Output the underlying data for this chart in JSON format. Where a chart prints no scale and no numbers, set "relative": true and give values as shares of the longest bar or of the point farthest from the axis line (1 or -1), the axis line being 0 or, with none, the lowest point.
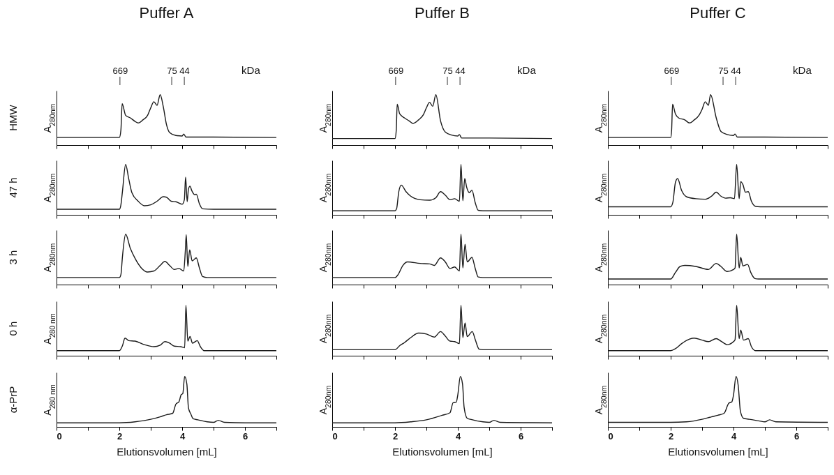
{
  "chart_data": [
    {
      "type": "line",
      "title": "Puffer A",
      "ylabel": "A$_{280nm}$",
      "relative": true,
      "xlim": [
        0,
        7
      ],
      "xticks": [
        0,
        {
          "value": 1,
          "label": null
        },
        2,
        {
          "value": 3,
          "label": null
        },
        4,
        {
          "value": 5,
          "label": null
        },
        6,
        {
          "value": 7,
          "label": null
        }
      ],
      "tick_labels": false,
      "x2lim": [
        9772,
        0.898
      ],
      "x2ticks": [
        669,
        75,
        44
      ],
      "x2label": "kDa",
      "log": "x2",
      "annotations": [
        "HMW"
      ],
      "x": [
        0,
        2.0,
        2.05,
        2.09,
        2.2,
        2.35,
        2.5,
        2.6,
        2.75,
        2.9,
        3.0,
        3.1,
        3.2,
        3.3,
        3.4,
        3.5,
        3.6,
        3.8,
        4.0,
        4.05,
        4.12,
        5.0,
        7.0
      ],
      "series": [
        {
          "color": "#1a1a1a",
          "values": [
            0.15,
            0.15,
            0.3,
            0.82,
            0.59,
            0.54,
            0.47,
            0.44,
            0.5,
            0.59,
            0.74,
            0.86,
            0.79,
            1.0,
            0.76,
            0.41,
            0.25,
            0.19,
            0.18,
            0.22,
            0.16,
            0.16,
            0.15
          ]
        }
      ]
    },
    {
      "type": "line",
      "title": "Puffer B",
      "ylabel": "A$_{280nm}$",
      "relative": true,
      "xlim": [
        0,
        7
      ],
      "xticks": [
        0,
        {
          "value": 1,
          "label": null
        },
        2,
        {
          "value": 3,
          "label": null
        },
        4,
        {
          "value": 5,
          "label": null
        },
        6,
        {
          "value": 7,
          "label": null
        }
      ],
      "tick_labels": false,
      "x2lim": [
        9772,
        0.898
      ],
      "x2ticks": [
        669,
        75,
        44
      ],
      "x2label": "kDa",
      "log": "x2",
      "x": [
        0,
        2.0,
        2.04,
        2.07,
        2.15,
        2.3,
        2.45,
        2.57,
        2.75,
        2.9,
        3.0,
        3.1,
        3.2,
        3.3,
        3.45,
        3.6,
        3.8,
        4.0,
        4.05,
        4.12,
        5.0,
        7.0
      ],
      "series": [
        {
          "color": "#1a1a1a",
          "values": [
            0.13,
            0.13,
            0.3,
            0.81,
            0.62,
            0.54,
            0.48,
            0.43,
            0.5,
            0.6,
            0.74,
            0.85,
            0.77,
            1.0,
            0.48,
            0.26,
            0.2,
            0.18,
            0.21,
            0.14,
            0.14,
            0.13
          ]
        }
      ]
    },
    {
      "type": "line",
      "title": "Puffer C",
      "ylabel": "A$_{280nm}$",
      "relative": true,
      "xlim": [
        0,
        7
      ],
      "xticks": [
        0,
        {
          "value": 1,
          "label": null
        },
        2,
        {
          "value": 3,
          "label": null
        },
        4,
        {
          "value": 5,
          "label": null
        },
        6,
        {
          "value": 7,
          "label": null
        }
      ],
      "tick_labels": false,
      "x2lim": [
        9772,
        0.898
      ],
      "x2ticks": [
        669,
        75,
        44
      ],
      "x2label": "kDa",
      "log": "x2",
      "x": [
        0,
        2.0,
        2.03,
        2.06,
        2.15,
        2.25,
        2.45,
        2.6,
        2.75,
        2.9,
        3.0,
        3.1,
        3.2,
        3.27,
        3.45,
        3.6,
        3.8,
        4.0,
        4.05,
        4.12,
        5.0,
        7.0
      ],
      "series": [
        {
          "color": "#1a1a1a",
          "values": [
            0.15,
            0.15,
            0.3,
            0.81,
            0.62,
            0.54,
            0.5,
            0.44,
            0.5,
            0.59,
            0.71,
            0.86,
            0.79,
            1.0,
            0.54,
            0.27,
            0.21,
            0.19,
            0.22,
            0.16,
            0.16,
            0.15
          ]
        }
      ]
    },
    {
      "type": "line",
      "ylabel": "A$_{280nm}$",
      "relative": true,
      "xlim": [
        0,
        7
      ],
      "xticks": [
        0,
        {
          "value": 1,
          "label": null
        },
        2,
        {
          "value": 3,
          "label": null
        },
        4,
        {
          "value": 5,
          "label": null
        },
        6,
        {
          "value": 7,
          "label": null
        }
      ],
      "tick_labels": false,
      "annotations": [
        "47 h"
      ],
      "x": [
        0,
        2.0,
        2.05,
        2.1,
        2.2,
        2.3,
        2.4,
        2.6,
        2.8,
        3.0,
        3.2,
        3.4,
        3.5,
        3.65,
        3.8,
        4.0,
        4.07,
        4.11,
        4.16,
        4.2,
        4.25,
        4.3,
        4.4,
        4.45,
        4.55,
        4.65,
        5.0,
        7.0
      ],
      "series": [
        {
          "color": "#1a1a1a",
          "values": [
            0.11,
            0.11,
            0.2,
            0.47,
            1.0,
            0.71,
            0.44,
            0.27,
            0.18,
            0.2,
            0.27,
            0.36,
            0.35,
            0.27,
            0.26,
            0.21,
            0.3,
            0.75,
            0.26,
            0.51,
            0.57,
            0.49,
            0.4,
            0.41,
            0.22,
            0.12,
            0.11,
            0.11
          ]
        }
      ]
    },
    {
      "type": "line",
      "ylabel": "A$_{280nm}$",
      "relative": true,
      "xlim": [
        0,
        7
      ],
      "xticks": [
        0,
        {
          "value": 1,
          "label": null
        },
        2,
        {
          "value": 3,
          "label": null
        },
        4,
        {
          "value": 5,
          "label": null
        },
        6,
        {
          "value": 7,
          "label": null
        }
      ],
      "tick_labels": false,
      "x": [
        0,
        2.0,
        2.05,
        2.12,
        2.2,
        2.35,
        2.5,
        2.8,
        3.1,
        3.3,
        3.45,
        3.6,
        3.75,
        3.9,
        4.05,
        4.1,
        4.16,
        4.22,
        4.28,
        4.37,
        4.45,
        4.55,
        4.65,
        4.8,
        7.0
      ],
      "series": [
        {
          "color": "#1a1a1a",
          "values": [
            0.08,
            0.08,
            0.12,
            0.46,
            0.59,
            0.46,
            0.37,
            0.3,
            0.29,
            0.34,
            0.46,
            0.39,
            0.3,
            0.32,
            0.27,
            1.0,
            0.28,
            0.72,
            0.55,
            0.44,
            0.49,
            0.25,
            0.09,
            0.08,
            0.08
          ]
        }
      ]
    },
    {
      "type": "line",
      "ylabel": "A$_{280nm}$",
      "relative": true,
      "xlim": [
        0,
        7
      ],
      "xticks": [
        0,
        {
          "value": 1,
          "label": null
        },
        2,
        {
          "value": 3,
          "label": null
        },
        4,
        {
          "value": 5,
          "label": null
        },
        6,
        {
          "value": 7,
          "label": null
        }
      ],
      "tick_labels": false,
      "x": [
        0,
        2.0,
        2.07,
        2.15,
        2.22,
        2.35,
        2.5,
        2.8,
        3.1,
        3.3,
        3.45,
        3.6,
        3.75,
        3.9,
        4.03,
        4.1,
        4.18,
        4.23,
        4.3,
        4.38,
        4.47,
        4.57,
        4.7,
        4.85,
        7.0
      ],
      "series": [
        {
          "color": "#1a1a1a",
          "values": [
            0.16,
            0.16,
            0.25,
            0.64,
            0.72,
            0.48,
            0.36,
            0.32,
            0.31,
            0.37,
            0.45,
            0.37,
            0.33,
            0.34,
            0.32,
            1.0,
            0.32,
            0.66,
            0.6,
            0.45,
            0.46,
            0.27,
            0.17,
            0.16,
            0.16
          ]
        }
      ]
    },
    {
      "type": "line",
      "ylabel": "A$_{280nm}$",
      "relative": true,
      "xlim": [
        0,
        7
      ],
      "xticks": [
        0,
        {
          "value": 1,
          "label": null
        },
        2,
        {
          "value": 3,
          "label": null
        },
        4,
        {
          "value": 5,
          "label": null
        },
        6,
        {
          "value": 7,
          "label": null
        }
      ],
      "tick_labels": false,
      "annotations": [
        "3 h"
      ],
      "x": [
        0,
        2.0,
        2.05,
        2.1,
        2.2,
        2.35,
        2.5,
        2.7,
        2.9,
        3.1,
        3.3,
        3.45,
        3.6,
        3.75,
        3.9,
        4.05,
        4.1,
        4.13,
        4.18,
        4.24,
        4.32,
        4.45,
        4.55,
        4.65,
        4.8,
        7.0
      ],
      "series": [
        {
          "color": "#1a1a1a",
          "values": [
            0.14,
            0.14,
            0.2,
            0.56,
            1.0,
            0.72,
            0.52,
            0.33,
            0.25,
            0.27,
            0.38,
            0.46,
            0.38,
            0.3,
            0.32,
            0.27,
            0.66,
            0.99,
            0.36,
            0.69,
            0.47,
            0.53,
            0.33,
            0.16,
            0.14,
            0.14
          ]
        }
      ]
    },
    {
      "type": "line",
      "ylabel": "A$_{280nm}$",
      "relative": true,
      "xlim": [
        0,
        7
      ],
      "xticks": [
        0,
        {
          "value": 1,
          "label": null
        },
        2,
        {
          "value": 3,
          "label": null
        },
        4,
        {
          "value": 5,
          "label": null
        },
        6,
        {
          "value": 7,
          "label": null
        }
      ],
      "tick_labels": false,
      "x": [
        0,
        2.0,
        2.1,
        2.25,
        2.4,
        2.8,
        3.1,
        3.25,
        3.45,
        3.6,
        3.75,
        3.9,
        4.05,
        4.1,
        4.16,
        4.23,
        4.3,
        4.45,
        4.55,
        4.65,
        4.8,
        7.0
      ],
      "series": [
        {
          "color": "#1a1a1a",
          "values": [
            0.14,
            0.14,
            0.2,
            0.38,
            0.45,
            0.42,
            0.41,
            0.38,
            0.53,
            0.45,
            0.32,
            0.35,
            0.27,
            1.0,
            0.33,
            0.8,
            0.45,
            0.54,
            0.33,
            0.15,
            0.14,
            0.14
          ]
        }
      ]
    },
    {
      "type": "line",
      "ylabel": "A$_{280nm}$",
      "relative": true,
      "xlim": [
        0,
        7
      ],
      "xticks": [
        0,
        {
          "value": 1,
          "label": null
        },
        2,
        {
          "value": 3,
          "label": null
        },
        4,
        {
          "value": 5,
          "label": null
        },
        6,
        {
          "value": 7,
          "label": null
        }
      ],
      "tick_labels": false,
      "x": [
        0,
        2.0,
        2.15,
        2.3,
        2.45,
        2.8,
        3.2,
        3.45,
        3.6,
        3.8,
        4.0,
        4.05,
        4.1,
        4.18,
        4.23,
        4.3,
        4.45,
        4.55,
        4.68,
        4.8,
        7.0
      ],
      "series": [
        {
          "color": "#1a1a1a",
          "values": [
            0.11,
            0.11,
            0.24,
            0.36,
            0.38,
            0.36,
            0.3,
            0.42,
            0.36,
            0.26,
            0.3,
            0.33,
            1.0,
            0.33,
            0.54,
            0.37,
            0.4,
            0.24,
            0.12,
            0.11,
            0.11
          ]
        }
      ]
    },
    {
      "type": "line",
      "ylabel": "A$_{280 nm}$",
      "relative": true,
      "xlim": [
        0,
        7
      ],
      "xticks": [
        0,
        {
          "value": 1,
          "label": null
        },
        2,
        {
          "value": 3,
          "label": null
        },
        4,
        {
          "value": 5,
          "label": null
        },
        6,
        {
          "value": 7,
          "label": null
        }
      ],
      "tick_labels": false,
      "annotations": [
        "0 h"
      ],
      "x": [
        0,
        2.0,
        2.1,
        2.18,
        2.3,
        2.5,
        2.8,
        3.1,
        3.3,
        3.45,
        3.6,
        3.75,
        3.95,
        4.08,
        4.12,
        4.18,
        4.25,
        4.33,
        4.48,
        4.58,
        4.7,
        7.0
      ],
      "series": [
        {
          "color": "#1a1a1a",
          "values": [
            0.1,
            0.1,
            0.2,
            0.35,
            0.3,
            0.29,
            0.22,
            0.18,
            0.21,
            0.28,
            0.25,
            0.19,
            0.18,
            0.16,
            1.0,
            0.29,
            0.38,
            0.25,
            0.3,
            0.18,
            0.1,
            0.1
          ]
        }
      ]
    },
    {
      "type": "line",
      "ylabel": "A$_{280nm}$",
      "relative": true,
      "xlim": [
        0,
        7
      ],
      "xticks": [
        0,
        {
          "value": 1,
          "label": null
        },
        2,
        {
          "value": 3,
          "label": null
        },
        4,
        {
          "value": 5,
          "label": null
        },
        6,
        {
          "value": 7,
          "label": null
        }
      ],
      "tick_labels": false,
      "x": [
        0,
        2.0,
        2.15,
        2.3,
        2.5,
        2.75,
        3.0,
        3.25,
        3.45,
        3.6,
        3.75,
        3.9,
        4.05,
        4.1,
        4.16,
        4.23,
        4.3,
        4.46,
        4.55,
        4.68,
        4.8,
        7.0
      ],
      "series": [
        {
          "color": "#1a1a1a",
          "values": [
            0.12,
            0.12,
            0.2,
            0.26,
            0.36,
            0.45,
            0.43,
            0.37,
            0.48,
            0.39,
            0.29,
            0.28,
            0.24,
            1.0,
            0.36,
            0.65,
            0.38,
            0.48,
            0.33,
            0.13,
            0.12,
            0.12
          ]
        }
      ]
    },
    {
      "type": "line",
      "ylabel": "A$_{280nm}$",
      "relative": true,
      "xlim": [
        0,
        7
      ],
      "xticks": [
        0,
        {
          "value": 1,
          "label": null
        },
        2,
        {
          "value": 3,
          "label": null
        },
        4,
        {
          "value": 5,
          "label": null
        },
        6,
        {
          "value": 7,
          "label": null
        }
      ],
      "tick_labels": false,
      "x": [
        0,
        2.0,
        2.15,
        2.35,
        2.6,
        2.75,
        3.0,
        3.2,
        3.45,
        3.6,
        3.8,
        4.0,
        4.05,
        4.1,
        4.18,
        4.23,
        4.32,
        4.47,
        4.57,
        4.7,
        7.0
      ],
      "series": [
        {
          "color": "#1a1a1a",
          "values": [
            0.1,
            0.1,
            0.14,
            0.24,
            0.33,
            0.35,
            0.31,
            0.28,
            0.34,
            0.29,
            0.22,
            0.28,
            0.32,
            1.0,
            0.34,
            0.51,
            0.31,
            0.34,
            0.18,
            0.1,
            0.1
          ]
        }
      ]
    },
    {
      "type": "line",
      "ylabel": "A$_{280 nm}$",
      "xlabel": "Elutionsvolumen [mL]",
      "relative": true,
      "xlim": [
        0,
        7
      ],
      "xticks": [
        0,
        {
          "value": 1,
          "label": null
        },
        2,
        {
          "value": 3,
          "label": null
        },
        4,
        {
          "value": 5,
          "label": null
        },
        6,
        {
          "value": 7,
          "label": null
        }
      ],
      "tick_labels": "x",
      "annotations": [
        "α-PrP"
      ],
      "x": [
        0,
        2.0,
        2.5,
        3.0,
        3.3,
        3.5,
        3.7,
        3.8,
        3.9,
        3.97,
        4.02,
        4.08,
        4.15,
        4.2,
        4.28,
        4.35,
        4.5,
        4.8,
        5.0,
        5.15,
        5.35,
        6.0,
        7.0
      ],
      "series": [
        {
          "color": "#1a1a1a",
          "values": [
            0.08,
            0.08,
            0.1,
            0.15,
            0.2,
            0.24,
            0.27,
            0.45,
            0.5,
            0.64,
            0.66,
            1.0,
            0.85,
            0.38,
            0.25,
            0.16,
            0.14,
            0.1,
            0.09,
            0.13,
            0.09,
            0.08,
            0.08
          ]
        }
      ]
    },
    {
      "type": "line",
      "ylabel": "A$_{280nm}$",
      "xlabel": "Elutionsvolumen [mL]",
      "relative": true,
      "xlim": [
        0,
        7
      ],
      "xticks": [
        0,
        {
          "value": 1,
          "label": null
        },
        2,
        {
          "value": 3,
          "label": null
        },
        4,
        {
          "value": 5,
          "label": null
        },
        6,
        {
          "value": 7,
          "label": null
        }
      ],
      "tick_labels": "x",
      "x": [
        0,
        2.0,
        2.5,
        3.0,
        3.5,
        3.75,
        3.85,
        3.95,
        4.0,
        4.08,
        4.15,
        4.2,
        4.3,
        4.4,
        4.8,
        5.0,
        5.15,
        5.35,
        7.0
      ],
      "series": [
        {
          "color": "#1a1a1a",
          "values": [
            0.08,
            0.08,
            0.1,
            0.14,
            0.23,
            0.28,
            0.48,
            0.49,
            0.64,
            1.0,
            0.85,
            0.39,
            0.17,
            0.15,
            0.1,
            0.09,
            0.13,
            0.09,
            0.08
          ]
        }
      ]
    },
    {
      "type": "line",
      "ylabel": "A$_{280nm}$",
      "xlabel": "Elutionsvolumen [mL]",
      "relative": true,
      "xlim": [
        0,
        7
      ],
      "xticks": [
        0,
        {
          "value": 1,
          "label": null
        },
        2,
        {
          "value": 3,
          "label": null
        },
        4,
        {
          "value": 5,
          "label": null
        },
        6,
        {
          "value": 7,
          "label": null
        }
      ],
      "tick_labels": "x",
      "x": [
        0,
        2.0,
        2.5,
        3.0,
        3.3,
        3.5,
        3.7,
        3.85,
        3.95,
        4.0,
        4.08,
        4.15,
        4.22,
        4.32,
        4.5,
        4.8,
        5.0,
        5.15,
        5.35,
        7.0
      ],
      "series": [
        {
          "color": "#1a1a1a",
          "values": [
            0.09,
            0.09,
            0.1,
            0.15,
            0.2,
            0.23,
            0.27,
            0.47,
            0.5,
            0.63,
            1.0,
            0.82,
            0.31,
            0.17,
            0.15,
            0.12,
            0.1,
            0.14,
            0.1,
            0.09
          ]
        }
      ]
    }
  ]
}
